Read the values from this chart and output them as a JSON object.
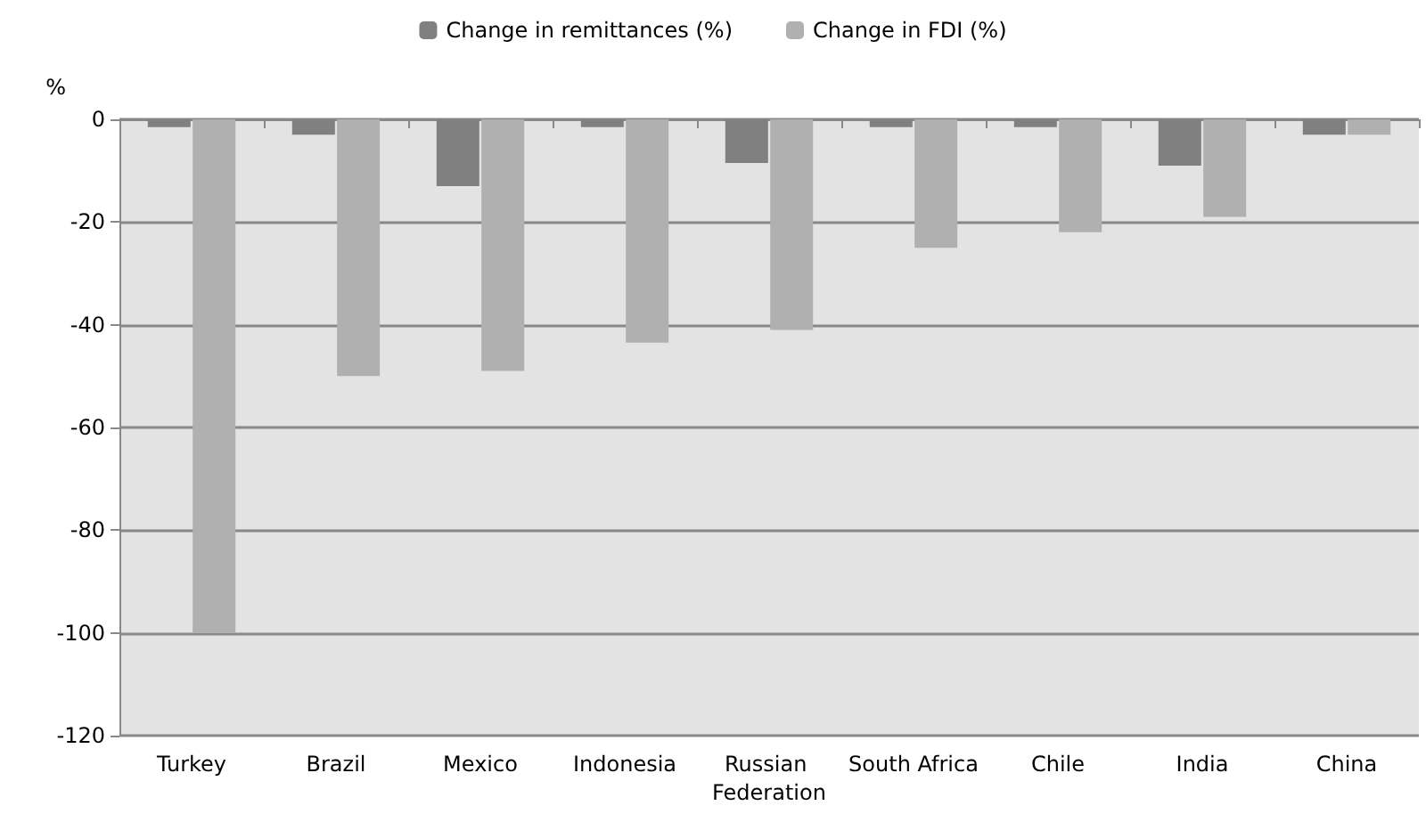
{
  "chart_data": {
    "type": "bar",
    "ylabel": "%",
    "categories": [
      "Turkey",
      "Brazil",
      "Mexico",
      "Indonesia",
      "Russian Federation",
      "South Africa",
      "Chile",
      "India",
      "China"
    ],
    "series": [
      {
        "name": "Change in remittances (%)",
        "color": "#808080",
        "values": [
          -1.5,
          -3,
          -13,
          -1.5,
          -8.5,
          -1.5,
          -1.5,
          -9,
          -3
        ]
      },
      {
        "name": "Change in FDI (%)",
        "color": "#b0b0b0",
        "values": [
          -100,
          -50,
          -49,
          -43.5,
          -41,
          -25,
          -22,
          -19,
          -3
        ]
      }
    ],
    "ylim": [
      -120,
      0
    ],
    "yticks": [
      -120,
      -100,
      -80,
      -60,
      -40,
      -20,
      0
    ],
    "grid": "y",
    "legend": "top"
  }
}
